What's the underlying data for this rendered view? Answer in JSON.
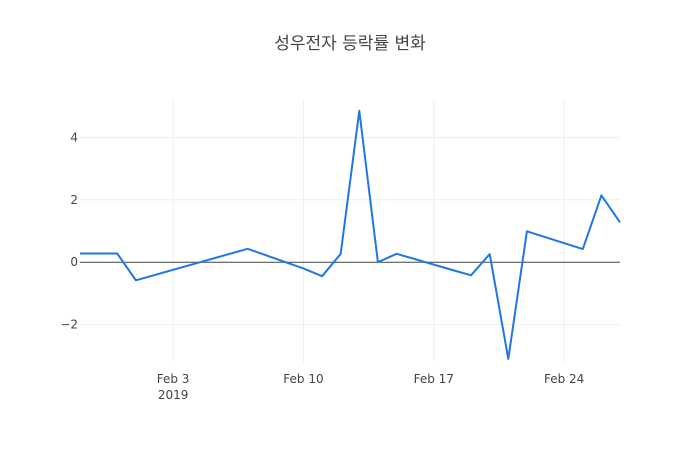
{
  "chart_data": {
    "type": "line",
    "title": "성우전자 등락률 변화",
    "xlabel": "",
    "ylabel": "",
    "x_axis": {
      "type": "date",
      "range": [
        "2019-01-29",
        "2019-02-27"
      ],
      "ticks": [
        {
          "date": "2019-02-03",
          "label": "Feb 3",
          "sublabel": "2019"
        },
        {
          "date": "2019-02-10",
          "label": "Feb 10",
          "sublabel": ""
        },
        {
          "date": "2019-02-17",
          "label": "Feb 17",
          "sublabel": ""
        },
        {
          "date": "2019-02-24",
          "label": "Feb 24",
          "sublabel": ""
        }
      ]
    },
    "y_axis": {
      "range": [
        -3.2,
        5.2
      ],
      "ticks": [
        {
          "value": -2,
          "label": "−2"
        },
        {
          "value": 0,
          "label": "0"
        },
        {
          "value": 2,
          "label": "2"
        },
        {
          "value": 4,
          "label": "4"
        }
      ]
    },
    "grid": true,
    "zero_line": true,
    "series": [
      {
        "color": "#1f77e4",
        "x": [
          "2019-01-29",
          "2019-01-30",
          "2019-01-31",
          "2019-02-01",
          "2019-02-07",
          "2019-02-10",
          "2019-02-11",
          "2019-02-12",
          "2019-02-13",
          "2019-02-14",
          "2019-02-15",
          "2019-02-18",
          "2019-02-19",
          "2019-02-20",
          "2019-02-21",
          "2019-02-22",
          "2019-02-25",
          "2019-02-26",
          "2019-02-27"
        ],
        "values": [
          0.28,
          0.28,
          0.28,
          -0.58,
          0.43,
          -0.2,
          -0.45,
          0.27,
          4.85,
          0.0,
          0.27,
          -0.25,
          -0.42,
          0.26,
          -3.1,
          0.99,
          0.42,
          2.14,
          1.28
        ]
      }
    ]
  }
}
